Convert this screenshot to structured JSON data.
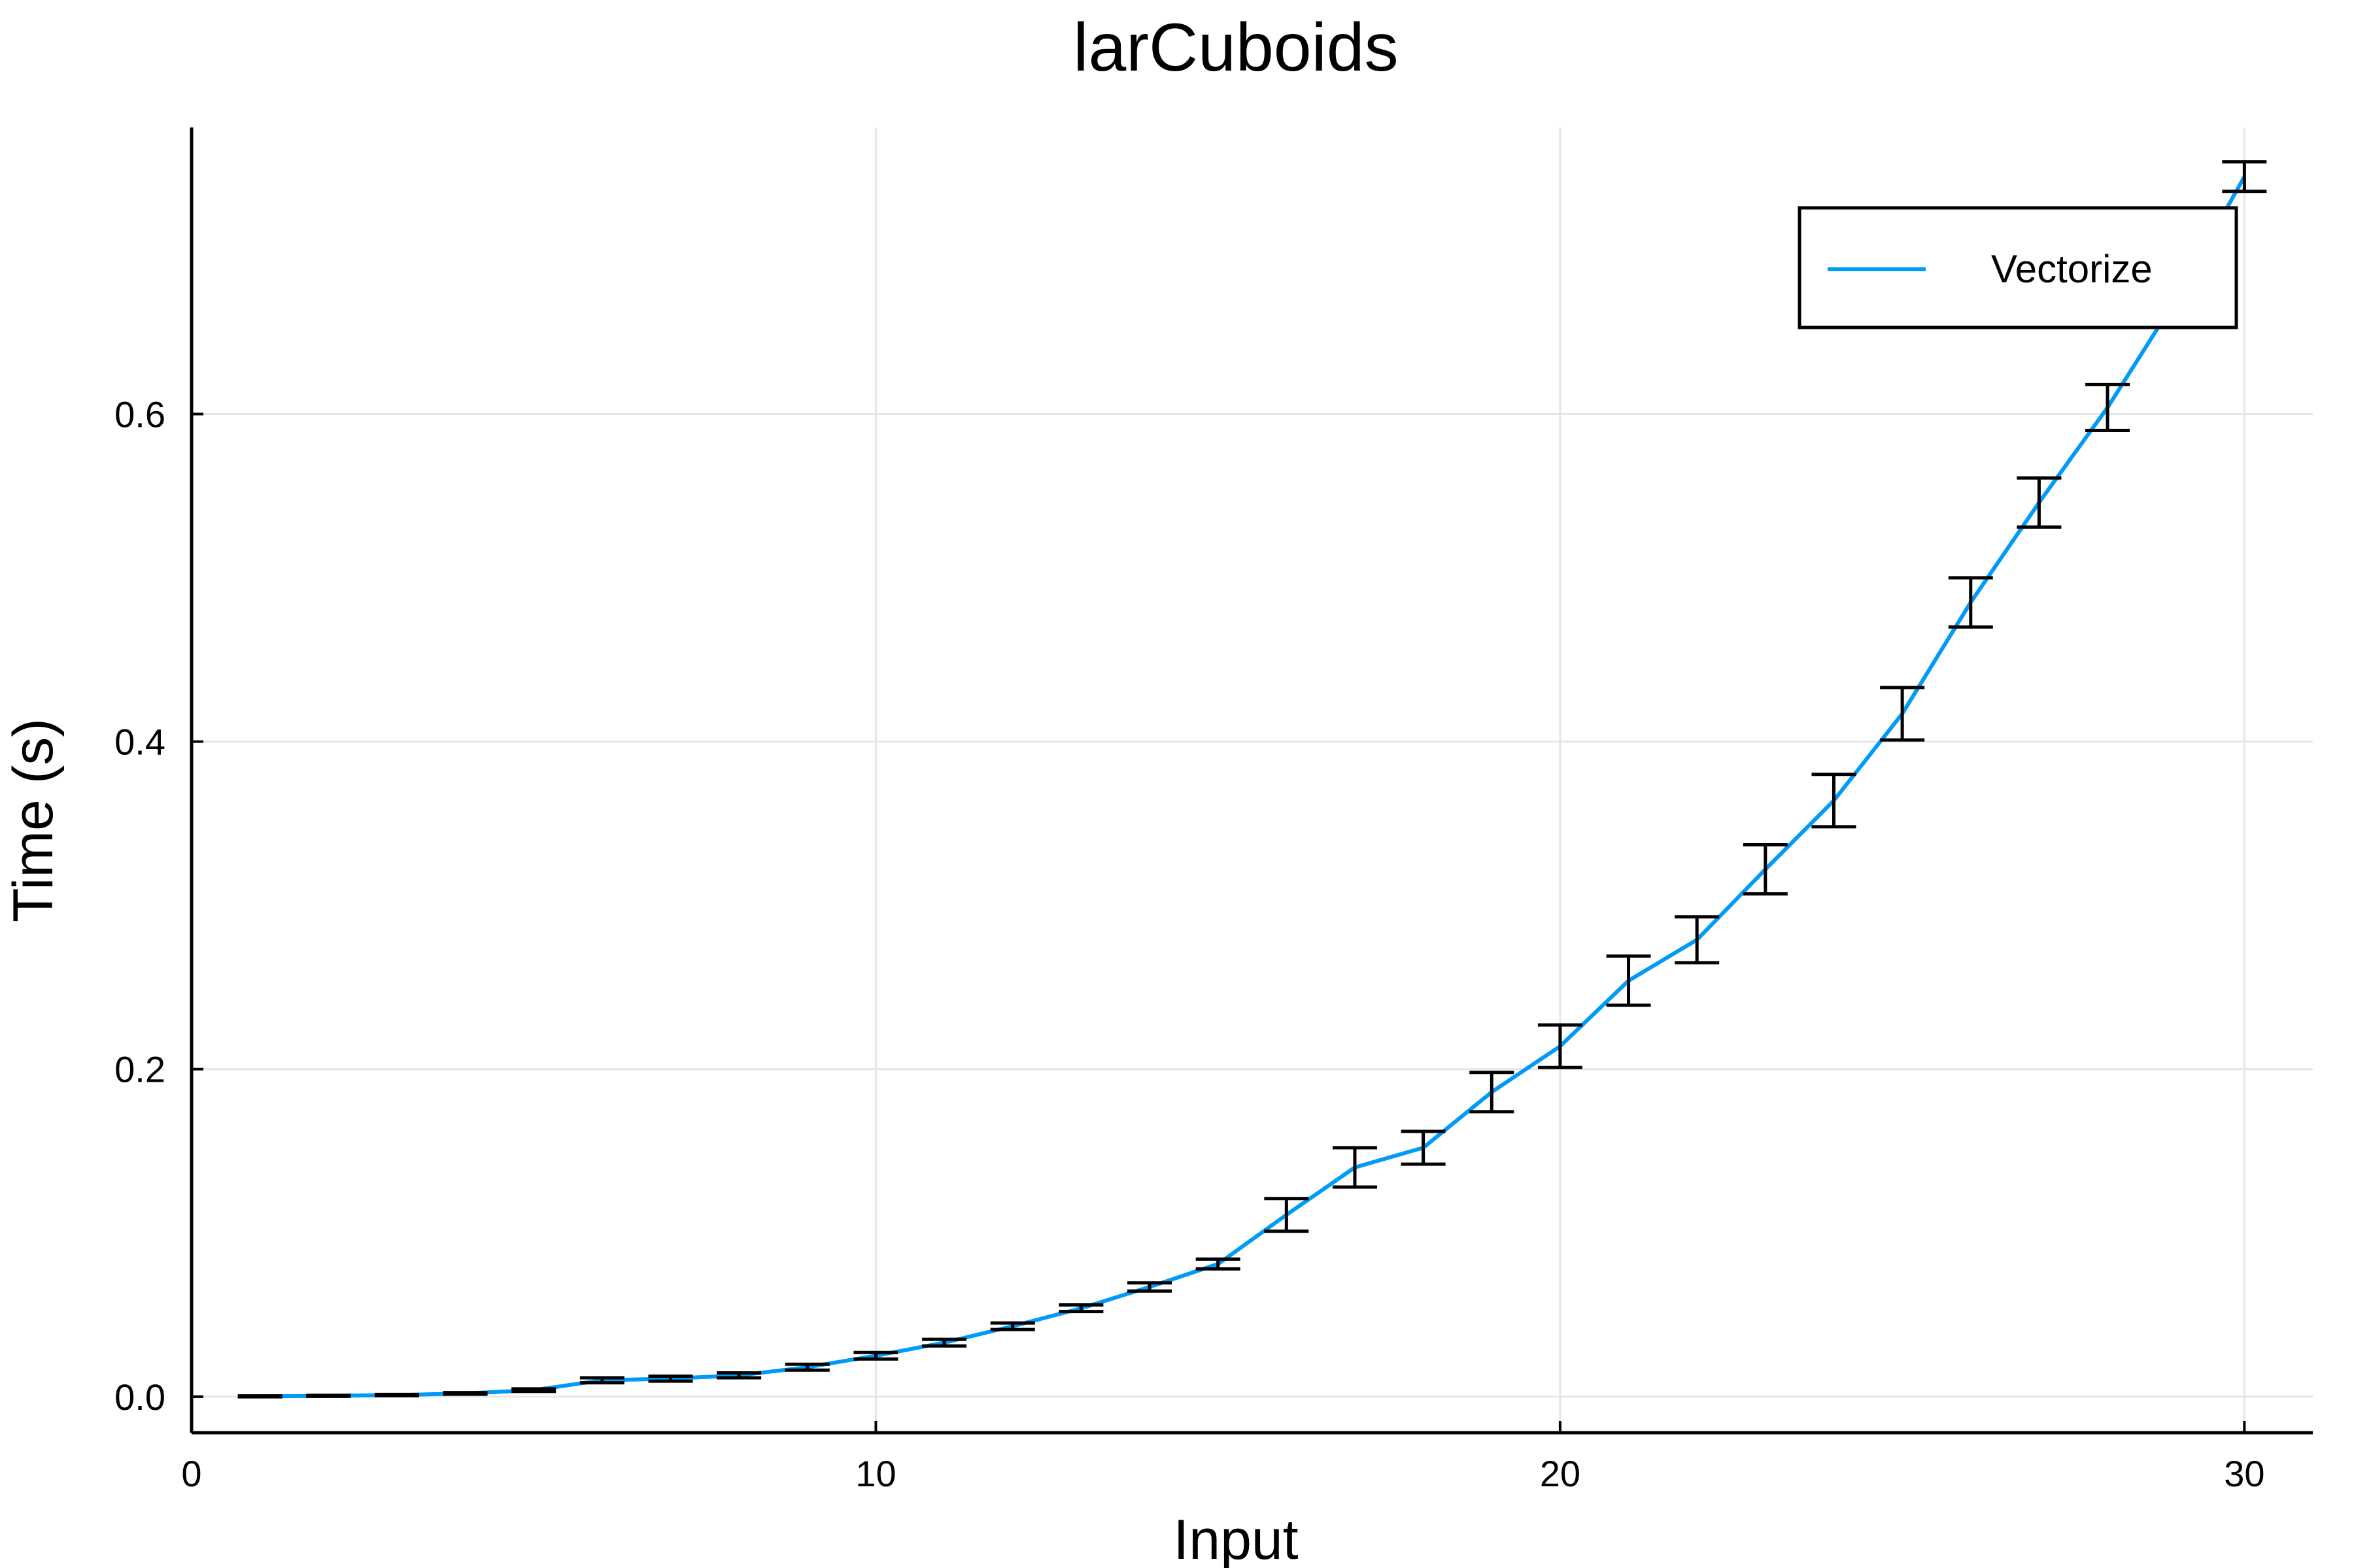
{
  "chart_data": {
    "type": "line",
    "title": "larCuboids",
    "xlabel": "Input",
    "ylabel": "Time (s)",
    "xlim": [
      0,
      31
    ],
    "ylim": [
      -0.022,
      0.775
    ],
    "xticks": [
      0,
      10,
      20,
      30
    ],
    "yticks": [
      0.0,
      0.2,
      0.4,
      0.6
    ],
    "xtick_labels": [
      "0",
      "10",
      "20",
      "30"
    ],
    "ytick_labels": [
      "0.0",
      "0.2",
      "0.4",
      "0.6"
    ],
    "grid": true,
    "legend_position": "top-right",
    "series_color": "#009af9",
    "series": [
      {
        "name": "Vectorize",
        "x": [
          1,
          2,
          3,
          4,
          5,
          6,
          7,
          8,
          9,
          10,
          11,
          12,
          13,
          14,
          15,
          16,
          17,
          18,
          19,
          20,
          21,
          22,
          23,
          24,
          25,
          26,
          27,
          28,
          29,
          30
        ],
        "y": [
          0.0002,
          0.0005,
          0.001,
          0.002,
          0.004,
          0.01,
          0.011,
          0.013,
          0.018,
          0.025,
          0.033,
          0.043,
          0.054,
          0.067,
          0.081,
          0.111,
          0.14,
          0.152,
          0.186,
          0.214,
          0.254,
          0.279,
          0.322,
          0.364,
          0.417,
          0.485,
          0.546,
          0.604,
          0.67,
          0.745
        ],
        "err": [
          0.0003,
          0.0003,
          0.0004,
          0.0005,
          0.0008,
          0.0015,
          0.0015,
          0.0015,
          0.0018,
          0.002,
          0.002,
          0.002,
          0.002,
          0.0025,
          0.003,
          0.01,
          0.012,
          0.01,
          0.012,
          0.013,
          0.015,
          0.014,
          0.015,
          0.016,
          0.016,
          0.015,
          0.015,
          0.014,
          0.01,
          0.009
        ]
      }
    ]
  }
}
